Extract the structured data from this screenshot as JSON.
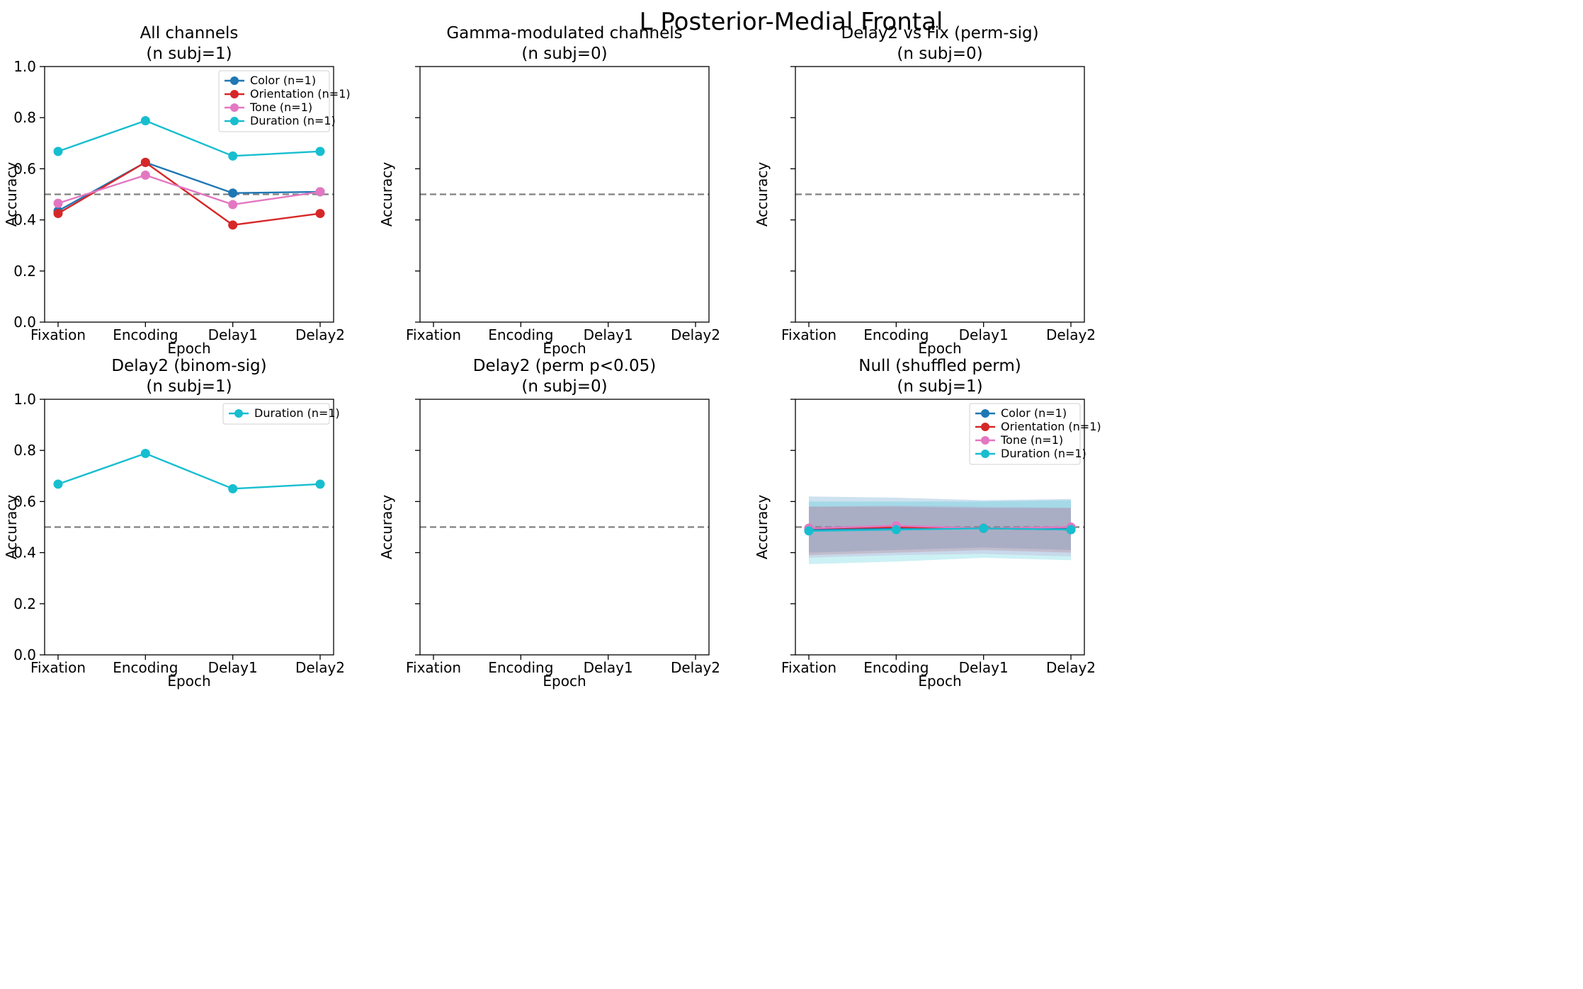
{
  "figure": {
    "title": "L Posterior-Medial Frontal"
  },
  "colors": {
    "Color (n=1)": "#1f77b4",
    "Orientation (n=1)": "#d62728",
    "Tone (n=1)": "#e377c2",
    "Duration (n=1)": "#17becf",
    "chance_line": "#808080",
    "null_band_color": "#1f77b4",
    "null_band_duration": "#17becf"
  },
  "chart_data": [
    {
      "type": "line",
      "title_line1": "All channels",
      "title_line2": "(n subj=1)",
      "categories": [
        "Fixation",
        "Encoding",
        "Delay1",
        "Delay2"
      ],
      "xlabel": "Epoch",
      "ylabel": "Accuracy",
      "ylim": [
        0,
        1
      ],
      "yticks": [
        "0.0",
        "0.2",
        "0.4",
        "0.6",
        "0.8",
        "1.0"
      ],
      "chance": 0.5,
      "legend": "top-right",
      "series": [
        {
          "name": "Color (n=1)",
          "values": [
            0.435,
            0.625,
            0.505,
            0.51
          ]
        },
        {
          "name": "Orientation (n=1)",
          "values": [
            0.425,
            0.625,
            0.38,
            0.425
          ]
        },
        {
          "name": "Tone (n=1)",
          "values": [
            0.465,
            0.575,
            0.46,
            0.51
          ]
        },
        {
          "name": "Duration (n=1)",
          "values": [
            0.668,
            0.788,
            0.65,
            0.668
          ]
        }
      ]
    },
    {
      "type": "line",
      "title_line1": "Gamma-modulated channels",
      "title_line2": "(n subj=0)",
      "categories": [
        "Fixation",
        "Encoding",
        "Delay1",
        "Delay2"
      ],
      "xlabel": "Epoch",
      "ylabel": "Accuracy",
      "ylim": [
        0,
        1
      ],
      "yticks": [],
      "chance": 0.5,
      "series": []
    },
    {
      "type": "line",
      "title_line1": "Delay2 vs Fix (perm-sig)",
      "title_line2": "(n subj=0)",
      "categories": [
        "Fixation",
        "Encoding",
        "Delay1",
        "Delay2"
      ],
      "xlabel": "Epoch",
      "ylabel": "Accuracy",
      "ylim": [
        0,
        1
      ],
      "yticks": [],
      "chance": 0.5,
      "series": []
    },
    {
      "type": "line",
      "title_line1": "Delay2 (binom-sig)",
      "title_line2": "(n subj=1)",
      "categories": [
        "Fixation",
        "Encoding",
        "Delay1",
        "Delay2"
      ],
      "xlabel": "Epoch",
      "ylabel": "Accuracy",
      "ylim": [
        0,
        1
      ],
      "yticks": [
        "0.0",
        "0.2",
        "0.4",
        "0.6",
        "0.8",
        "1.0"
      ],
      "chance": 0.5,
      "legend": "top-right",
      "series": [
        {
          "name": "Duration (n=1)",
          "values": [
            0.668,
            0.788,
            0.65,
            0.668
          ]
        }
      ]
    },
    {
      "type": "line",
      "title_line1": "Delay2 (perm p<0.05)",
      "title_line2": "(n subj=0)",
      "categories": [
        "Fixation",
        "Encoding",
        "Delay1",
        "Delay2"
      ],
      "xlabel": "Epoch",
      "ylabel": "Accuracy",
      "ylim": [
        0,
        1
      ],
      "yticks": [],
      "chance": 0.5,
      "series": []
    },
    {
      "type": "line",
      "title_line1": "Null (shuffled perm)",
      "title_line2": "(n subj=1)",
      "categories": [
        "Fixation",
        "Encoding",
        "Delay1",
        "Delay2"
      ],
      "xlabel": "Epoch",
      "ylabel": "Accuracy",
      "ylim": [
        0,
        1
      ],
      "yticks": [],
      "chance": 0.5,
      "legend": "top-right",
      "series": [
        {
          "name": "Color (n=1)",
          "values": [
            0.49,
            0.495,
            0.495,
            0.495
          ],
          "band": [
            [
              0.4,
              0.62
            ],
            [
              0.41,
              0.615
            ],
            [
              0.42,
              0.605
            ],
            [
              0.41,
              0.61
            ]
          ]
        },
        {
          "name": "Orientation (n=1)",
          "values": [
            0.495,
            0.5,
            0.495,
            0.49
          ],
          "band": [
            [
              0.39,
              0.58
            ],
            [
              0.4,
              0.58
            ],
            [
              0.41,
              0.575
            ],
            [
              0.4,
              0.575
            ]
          ]
        },
        {
          "name": "Tone (n=1)",
          "values": [
            0.495,
            0.505,
            0.495,
            0.5
          ],
          "band": [
            [
              0.38,
              0.58
            ],
            [
              0.39,
              0.585
            ],
            [
              0.395,
              0.58
            ],
            [
              0.385,
              0.575
            ]
          ]
        },
        {
          "name": "Duration (n=1)",
          "values": [
            0.485,
            0.49,
            0.495,
            0.49
          ],
          "band": [
            [
              0.355,
              0.6
            ],
            [
              0.365,
              0.6
            ],
            [
              0.38,
              0.6
            ],
            [
              0.37,
              0.605
            ]
          ]
        }
      ]
    }
  ]
}
